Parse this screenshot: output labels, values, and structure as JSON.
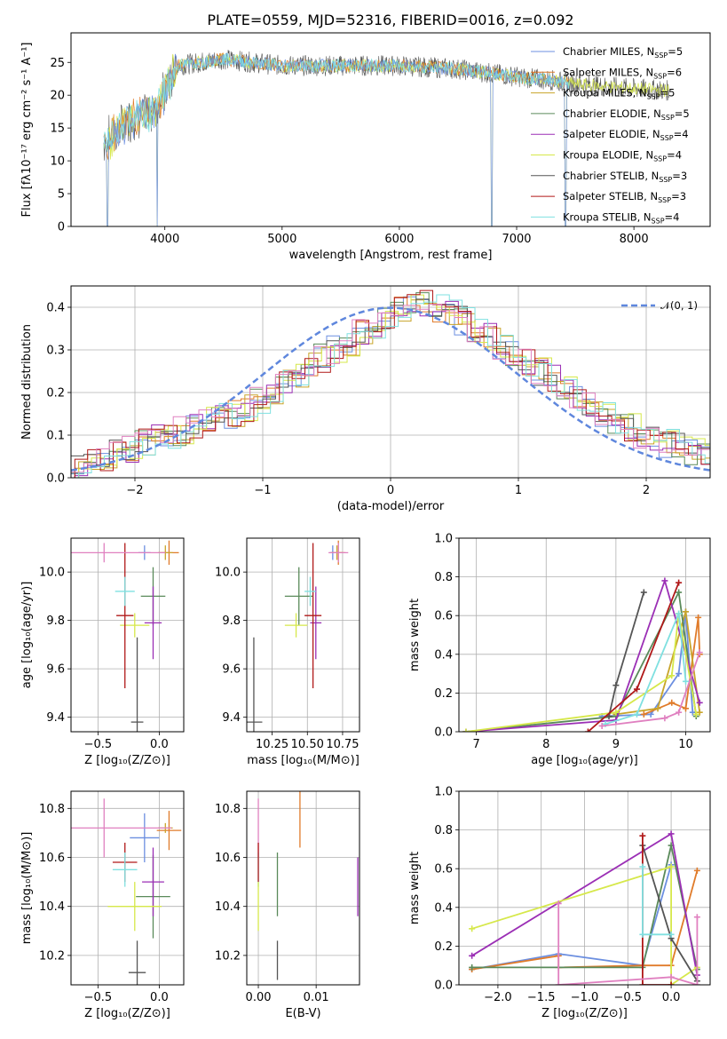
{
  "figure": {
    "title": "PLATE=0559, MJD=52316, FIBERID=0016, z=0.092",
    "colors": {
      "Chabrier MILES": "#6c8fe0",
      "Salpeter MILES": "#e07b2a",
      "Kroupa MILES": "#c8a42a",
      "Chabrier ELODIE": "#5a8a5a",
      "Salpeter ELODIE": "#9b2fb5",
      "Kroupa ELODIE": "#d6e84a",
      "Chabrier STELIB": "#555555",
      "Salpeter STELIB": "#b01818",
      "Kroupa STELIB": "#7fe0e0",
      "pink": "#e080c0",
      "dashed": "#5f87dd"
    },
    "legend_labels": [
      "Chabrier MILES, N",
      "Salpeter MILES, N",
      "Kroupa MILES, N",
      "Chabrier ELODIE, N",
      "Salpeter ELODIE, N",
      "Kroupa ELODIE, N",
      "Chabrier STELIB, N",
      "Salpeter STELIB, N",
      "Kroupa STELIB, N"
    ],
    "legend_sub": "SSP",
    "legend_counts": [
      "=5",
      "=6",
      "=5",
      "=5",
      "=4",
      "=4",
      "=3",
      "=3",
      "=4"
    ]
  },
  "chart_data": [
    {
      "id": "spectrum",
      "type": "line",
      "xlabel": "wavelength [Angstrom, rest frame]",
      "ylabel": "Flux [fλ10⁻¹⁷ erg cm⁻² s⁻¹ A⁻¹]",
      "xlim": [
        3200,
        8650
      ],
      "ylim": [
        0,
        29.5
      ],
      "xticks": [
        4000,
        5000,
        6000,
        7000,
        8000
      ],
      "yticks": [
        0,
        5,
        10,
        15,
        20,
        25
      ],
      "grid": false,
      "legend": "upper right",
      "continuum": {
        "x": [
          3480,
          3600,
          3700,
          3800,
          3900,
          4000,
          4100,
          4300,
          4500,
          5000,
          5500,
          6000,
          6500,
          6800,
          7100,
          7300,
          7500,
          8000,
          8300
        ],
        "y": [
          12.5,
          14.5,
          16.5,
          17,
          17.5,
          20.5,
          24.5,
          25,
          25.5,
          24.5,
          24.5,
          24.5,
          24,
          23.3,
          22.6,
          22.3,
          21.7,
          21,
          20.7
        ]
      },
      "dips": [
        {
          "x": 3510,
          "y": 0
        },
        {
          "x": 3935,
          "y": 0
        },
        {
          "x": 6790,
          "y": 0
        },
        {
          "x": 7420,
          "y": 0
        }
      ]
    },
    {
      "id": "residuals",
      "type": "histogram",
      "xlabel": "(data-model)/error",
      "ylabel": "Normed distribution",
      "xlim": [
        -2.5,
        2.5
      ],
      "ylim": [
        0,
        0.45
      ],
      "xticks": [
        -2,
        -1,
        0,
        1,
        2
      ],
      "yticks": [
        0.0,
        0.1,
        0.2,
        0.3,
        0.4
      ],
      "grid": true,
      "legend": "upper right",
      "legend_label": "𝒩(0, 1)",
      "envelope_bin_width": 0.1,
      "envelope": [
        0.03,
        0.04,
        0.05,
        0.06,
        0.07,
        0.08,
        0.09,
        0.1,
        0.11,
        0.12,
        0.13,
        0.14,
        0.15,
        0.16,
        0.18,
        0.2,
        0.22,
        0.24,
        0.26,
        0.28,
        0.3,
        0.32,
        0.34,
        0.36,
        0.37,
        0.39,
        0.4,
        0.41,
        0.4,
        0.39,
        0.37,
        0.35,
        0.33,
        0.31,
        0.29,
        0.27,
        0.25,
        0.23,
        0.21,
        0.19,
        0.17,
        0.15,
        0.13,
        0.12,
        0.1,
        0.09,
        0.08,
        0.07,
        0.06,
        0.05
      ]
    },
    {
      "id": "age-vs-Z",
      "type": "scatter",
      "xlabel": "Z [log₁₀(Z/Z⊙)]",
      "ylabel": "age  [log₁₀(age/yr)]",
      "xlim": [
        -0.72,
        0.2
      ],
      "ylim": [
        9.34,
        10.14
      ],
      "xticks": [
        -0.5,
        0.0
      ],
      "xticklabels": [
        "−0.5",
        "0.0"
      ],
      "yticks": [
        9.4,
        9.6,
        9.8,
        10.0
      ],
      "grid": true,
      "points": [
        {
          "series": "Chabrier MILES",
          "x": -0.12,
          "y": 10.08,
          "xerr": 0.05,
          "yerr": 0.03
        },
        {
          "series": "Salpeter MILES",
          "x": 0.08,
          "y": 10.08,
          "xerr": 0.08,
          "yerr": 0.05
        },
        {
          "series": "Kroupa MILES",
          "x": 0.05,
          "y": 10.08,
          "xerr": 0.06,
          "yerr": 0.03
        },
        {
          "series": "Chabrier ELODIE",
          "x": -0.05,
          "y": 9.9,
          "xerr": 0.1,
          "yerr": 0.12
        },
        {
          "series": "Salpeter ELODIE",
          "x": -0.05,
          "y": 9.79,
          "xerr": 0.07,
          "yerr": 0.15
        },
        {
          "series": "Kroupa ELODIE",
          "x": -0.2,
          "y": 9.78,
          "xerr": 0.12,
          "yerr": 0.05
        },
        {
          "series": "Chabrier STELIB",
          "x": -0.18,
          "y": 9.38,
          "xerr": 0.05,
          "yerr": 0.35
        },
        {
          "series": "Salpeter STELIB",
          "x": -0.28,
          "y": 9.82,
          "xerr": 0.07,
          "yerr": 0.3
        },
        {
          "series": "Kroupa STELIB",
          "x": -0.28,
          "y": 9.92,
          "xerr": 0.08,
          "yerr": 0.06
        },
        {
          "series": "pink",
          "x": -0.45,
          "y": 10.08,
          "xerr": 0.5,
          "yerr": 0.04
        }
      ]
    },
    {
      "id": "age-vs-mass",
      "type": "scatter",
      "xlabel": "mass [log₁₀(M/M⊙)]",
      "ylabel": "",
      "xlim": [
        10.07,
        10.87
      ],
      "ylim": [
        9.34,
        10.14
      ],
      "xticks": [
        10.25,
        10.5,
        10.75
      ],
      "xticklabels": [
        "10.25",
        "10.50",
        "10.75"
      ],
      "yticks": [
        9.4,
        9.6,
        9.8,
        10.0
      ],
      "grid": true,
      "points": [
        {
          "series": "Chabrier MILES",
          "x": 10.68,
          "y": 10.08,
          "xerr": 0.02,
          "yerr": 0.03
        },
        {
          "series": "Salpeter MILES",
          "x": 10.72,
          "y": 10.08,
          "xerr": 0.05,
          "yerr": 0.05
        },
        {
          "series": "Kroupa MILES",
          "x": 10.71,
          "y": 10.08,
          "xerr": 0.04,
          "yerr": 0.03
        },
        {
          "series": "Chabrier ELODIE",
          "x": 10.44,
          "y": 9.9,
          "xerr": 0.1,
          "yerr": 0.12
        },
        {
          "series": "Salpeter ELODIE",
          "x": 10.56,
          "y": 9.79,
          "xerr": 0.04,
          "yerr": 0.15
        },
        {
          "series": "Kroupa ELODIE",
          "x": 10.42,
          "y": 9.78,
          "xerr": 0.08,
          "yerr": 0.05
        },
        {
          "series": "Chabrier STELIB",
          "x": 10.12,
          "y": 9.38,
          "xerr": 0.06,
          "yerr": 0.35
        },
        {
          "series": "Salpeter STELIB",
          "x": 10.54,
          "y": 9.82,
          "xerr": 0.06,
          "yerr": 0.3
        },
        {
          "series": "Kroupa STELIB",
          "x": 10.52,
          "y": 9.92,
          "xerr": 0.04,
          "yerr": 0.06
        },
        {
          "series": "pink",
          "x": 10.72,
          "y": 10.08,
          "xerr": 0.07,
          "yerr": 0.04
        }
      ]
    },
    {
      "id": "weight-vs-age",
      "type": "line",
      "xlabel": "age  [log₁₀(age/yr)]",
      "ylabel": "mass weight",
      "xlim": [
        6.75,
        10.35
      ],
      "ylim": [
        0.0,
        1.0
      ],
      "xticks": [
        7,
        8,
        9,
        10
      ],
      "yticks": [
        0.0,
        0.2,
        0.4,
        0.6,
        0.8,
        1.0
      ],
      "grid": true,
      "series": [
        {
          "name": "Chabrier MILES",
          "x": [
            8.8,
            9.5,
            9.9,
            10.0,
            10.1
          ],
          "y": [
            0.08,
            0.09,
            0.3,
            0.62,
            0.1
          ]
        },
        {
          "name": "Salpeter MILES",
          "x": [
            9.4,
            9.8,
            10.0,
            10.18,
            10.2
          ],
          "y": [
            0.09,
            0.15,
            0.12,
            0.59,
            0.4
          ]
        },
        {
          "name": "Kroupa MILES",
          "x": [
            9.0,
            9.6,
            10.0,
            10.2
          ],
          "y": [
            0.09,
            0.12,
            0.62,
            0.1
          ]
        },
        {
          "name": "Chabrier ELODIE",
          "x": [
            6.85,
            9.0,
            9.9,
            10.15
          ],
          "y": [
            0.0,
            0.08,
            0.72,
            0.08
          ]
        },
        {
          "name": "Salpeter ELODIE",
          "x": [
            6.85,
            9.0,
            9.7,
            10.2
          ],
          "y": [
            0.0,
            0.06,
            0.78,
            0.15
          ]
        },
        {
          "name": "Kroupa ELODIE",
          "x": [
            6.85,
            9.0,
            9.8,
            9.9,
            10.15
          ],
          "y": [
            0.0,
            0.1,
            0.29,
            0.61,
            0.09
          ]
        },
        {
          "name": "Chabrier STELIB",
          "x": [
            8.9,
            9.0,
            9.4
          ],
          "y": [
            0.08,
            0.24,
            0.72
          ]
        },
        {
          "name": "Salpeter STELIB",
          "x": [
            8.6,
            9.3,
            9.9
          ],
          "y": [
            0.0,
            0.22,
            0.77
          ]
        },
        {
          "name": "Kroupa STELIB",
          "x": [
            8.85,
            9.3,
            9.9,
            10.0
          ],
          "y": [
            0.04,
            0.09,
            0.61,
            0.26
          ]
        },
        {
          "name": "pink",
          "x": [
            8.8,
            9.7,
            9.9,
            10.2
          ],
          "y": [
            0.03,
            0.07,
            0.1,
            0.41
          ]
        }
      ]
    },
    {
      "id": "mass-vs-Z",
      "type": "scatter",
      "xlabel": "Z [log₁₀(Z/Z⊙)]",
      "ylabel": "mass [log₁₀(M/M⊙)]",
      "xlim": [
        -0.72,
        0.2
      ],
      "ylim": [
        10.08,
        10.87
      ],
      "xticks": [
        -0.5,
        0.0
      ],
      "xticklabels": [
        "−0.5",
        "0.0"
      ],
      "yticks": [
        10.2,
        10.4,
        10.6,
        10.8
      ],
      "grid": true,
      "points": [
        {
          "series": "Chabrier MILES",
          "x": -0.12,
          "y": 10.68,
          "xerr": 0.12,
          "yerr": 0.1
        },
        {
          "series": "Salpeter MILES",
          "x": 0.08,
          "y": 10.71,
          "xerr": 0.1,
          "yerr": 0.08
        },
        {
          "series": "Kroupa MILES",
          "x": 0.05,
          "y": 10.72,
          "xerr": 0.06,
          "yerr": 0.02
        },
        {
          "series": "Chabrier ELODIE",
          "x": -0.05,
          "y": 10.44,
          "xerr": 0.14,
          "yerr": 0.17
        },
        {
          "series": "Salpeter ELODIE",
          "x": -0.05,
          "y": 10.5,
          "xerr": 0.09,
          "yerr": 0.14
        },
        {
          "series": "Kroupa ELODIE",
          "x": -0.2,
          "y": 10.4,
          "xerr": 0.22,
          "yerr": 0.1
        },
        {
          "series": "Chabrier STELIB",
          "x": -0.18,
          "y": 10.13,
          "xerr": 0.07,
          "yerr": 0.13
        },
        {
          "series": "Salpeter STELIB",
          "x": -0.28,
          "y": 10.58,
          "xerr": 0.1,
          "yerr": 0.08
        },
        {
          "series": "Kroupa STELIB",
          "x": -0.28,
          "y": 10.55,
          "xerr": 0.1,
          "yerr": 0.07
        },
        {
          "series": "pink",
          "x": -0.45,
          "y": 10.72,
          "xerr": 0.55,
          "yerr": 0.12
        }
      ]
    },
    {
      "id": "mass-vs-EBV",
      "type": "scatter",
      "xlabel": "E(B-V)",
      "ylabel": "",
      "xlim": [
        -0.002,
        0.0175
      ],
      "ylim": [
        10.08,
        10.87
      ],
      "xticks": [
        0.0,
        0.01
      ],
      "xticklabels": [
        "0.00",
        "0.01"
      ],
      "yticks": [
        10.2,
        10.4,
        10.6,
        10.8
      ],
      "grid": true,
      "points": [
        {
          "series": "pink",
          "x": 0.0,
          "y": 10.72,
          "xerr": 0.0,
          "yerr": 0.12
        },
        {
          "series": "Kroupa STELIB",
          "x": 0.0,
          "y": 10.55,
          "xerr": 0.0,
          "yerr": 0.07
        },
        {
          "series": "Salpeter STELIB",
          "x": 0.0,
          "y": 10.58,
          "xerr": 0.0,
          "yerr": 0.08
        },
        {
          "series": "Kroupa ELODIE",
          "x": 0.0,
          "y": 10.4,
          "xerr": 0.0,
          "yerr": 0.1
        },
        {
          "series": "Chabrier ELODIE",
          "x": 0.0033,
          "y": 10.49,
          "xerr": 0.0,
          "yerr": 0.13
        },
        {
          "series": "Chabrier STELIB",
          "x": 0.0033,
          "y": 10.18,
          "xerr": 0.0,
          "yerr": 0.08
        },
        {
          "series": "Salpeter MILES",
          "x": 0.0072,
          "y": 10.76,
          "xerr": 0.0,
          "yerr": 0.12
        },
        {
          "series": "Salpeter ELODIE",
          "x": 0.0172,
          "y": 10.48,
          "xerr": 0.0,
          "yerr": 0.12
        }
      ]
    },
    {
      "id": "weight-vs-Z",
      "type": "line",
      "xlabel": "Z [log₁₀(Z/Z⊙)]",
      "ylabel": "mass weight",
      "xlim": [
        -2.45,
        0.45
      ],
      "ylim": [
        0.0,
        1.0
      ],
      "xticks": [
        -2.0,
        -1.5,
        -1.0,
        -0.5,
        0.0
      ],
      "xticklabels": [
        "−2.0",
        "−1.5",
        "−1.0",
        "−0.5",
        "0.0"
      ],
      "yticks": [
        0.0,
        0.2,
        0.4,
        0.6,
        0.8,
        1.0
      ],
      "grid": true,
      "series": [
        {
          "name": "Chabrier MILES",
          "x": [
            -2.3,
            -1.3,
            -0.33,
            -0.33,
            0.0
          ],
          "y": [
            0.08,
            0.16,
            0.1,
            0.1,
            0.62
          ]
        },
        {
          "name": "Salpeter MILES",
          "x": [
            -2.3,
            -1.3,
            -1.3,
            -0.33,
            0.0,
            0.3
          ],
          "y": [
            0.08,
            0.15,
            0.09,
            0.1,
            0.1,
            0.59
          ]
        },
        {
          "name": "Chabrier ELODIE",
          "x": [
            -2.3,
            -0.33,
            0.0,
            0.3
          ],
          "y": [
            0.09,
            0.09,
            0.72,
            0.08
          ]
        },
        {
          "name": "Salpeter ELODIE",
          "x": [
            -2.3,
            0.0,
            0.3
          ],
          "y": [
            0.15,
            0.78,
            0.05
          ]
        },
        {
          "name": "Kroupa ELODIE",
          "x": [
            -2.3,
            0.0,
            0.0,
            0.3
          ],
          "y": [
            0.29,
            0.61,
            0.0,
            0.09
          ]
        },
        {
          "name": "Chabrier STELIB",
          "x": [
            -0.33,
            0.0,
            0.3
          ],
          "y": [
            0.72,
            0.24,
            0.02
          ]
        },
        {
          "name": "Salpeter STELIB",
          "x": [
            -0.33,
            -0.33,
            0.0
          ],
          "y": [
            0.77,
            0.0,
            0.0
          ]
        },
        {
          "name": "Kroupa STELIB",
          "x": [
            -0.33,
            -0.33,
            0.0
          ],
          "y": [
            0.61,
            0.26,
            0.26
          ]
        },
        {
          "name": "pink",
          "x": [
            -1.3,
            -1.3,
            0.0,
            0.3,
            0.3
          ],
          "y": [
            0.42,
            0.0,
            0.04,
            0.0,
            0.35
          ]
        }
      ]
    }
  ]
}
